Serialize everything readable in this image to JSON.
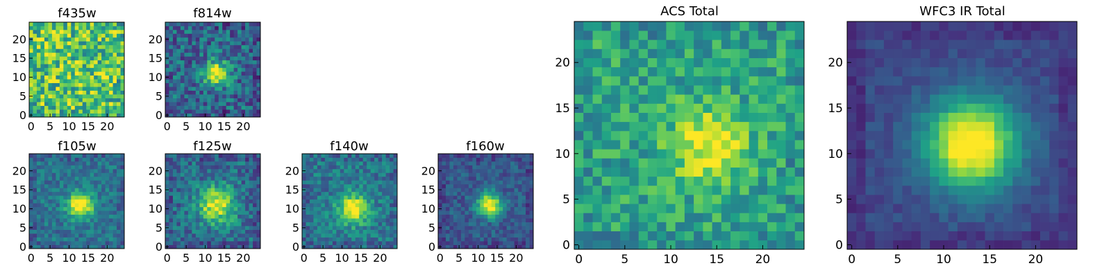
{
  "figure": {
    "colormap": "viridis",
    "colors": {
      "cmap_stops": [
        "#440154",
        "#46327e",
        "#365c8d",
        "#277f8e",
        "#1fa187",
        "#4ac16d",
        "#a0da39",
        "#fde725"
      ],
      "frame": "#000000",
      "background": "#ffffff"
    }
  },
  "chart_data": [
    {
      "id": "f435w",
      "type": "heatmap",
      "title": "f435w",
      "grid_size": 25,
      "xlim": [
        0,
        24
      ],
      "ylim": [
        0,
        24
      ],
      "xticks": [
        0,
        5,
        10,
        15,
        20
      ],
      "yticks": [
        0,
        5,
        10,
        15,
        20
      ],
      "xtick_labels": [
        "0",
        "5",
        "10",
        "15",
        "20"
      ],
      "ytick_labels": [
        "0",
        "5",
        "10",
        "15",
        "20"
      ],
      "peak": [
        13,
        11
      ],
      "peak_strength": 0.02,
      "psf_sigma": 3.0,
      "base_level": 0.72,
      "noise_level": 0.3,
      "seed": 11
    },
    {
      "id": "f814w",
      "type": "heatmap",
      "title": "f814w",
      "grid_size": 25,
      "xlim": [
        0,
        24
      ],
      "ylim": [
        0,
        24
      ],
      "xticks": [
        0,
        5,
        10,
        15,
        20
      ],
      "yticks": [
        0,
        5,
        10,
        15,
        20
      ],
      "xtick_labels": [
        "0",
        "5",
        "10",
        "15",
        "20"
      ],
      "ytick_labels": [
        "0",
        "5",
        "10",
        "15",
        "20"
      ],
      "peak": [
        13,
        11
      ],
      "peak_strength": 0.72,
      "psf_sigma": 2.2,
      "base_level": 0.34,
      "noise_level": 0.22,
      "seed": 27
    },
    {
      "id": "f105w",
      "type": "heatmap",
      "title": "f105w",
      "grid_size": 25,
      "xlim": [
        0,
        24
      ],
      "ylim": [
        0,
        24
      ],
      "xticks": [
        0,
        5,
        10,
        15,
        20
      ],
      "yticks": [
        0,
        5,
        10,
        15,
        20
      ],
      "xtick_labels": [
        "0",
        "5",
        "10",
        "15",
        "20"
      ],
      "ytick_labels": [
        "0",
        "5",
        "10",
        "15",
        "20"
      ],
      "peak": [
        13,
        11
      ],
      "peak_strength": 0.72,
      "psf_sigma": 2.4,
      "base_level": 0.38,
      "noise_level": 0.14,
      "seed": 41
    },
    {
      "id": "f125w",
      "type": "heatmap",
      "title": "f125w",
      "grid_size": 25,
      "xlim": [
        0,
        24
      ],
      "ylim": [
        0,
        24
      ],
      "xticks": [
        0,
        5,
        10,
        15,
        20
      ],
      "yticks": [
        0,
        5,
        10,
        15,
        20
      ],
      "xtick_labels": [
        "0",
        "5",
        "10",
        "15",
        "20"
      ],
      "ytick_labels": [
        "0",
        "5",
        "10",
        "15",
        "20"
      ],
      "peak": [
        13,
        11
      ],
      "peak_strength": 0.62,
      "psf_sigma": 3.4,
      "base_level": 0.35,
      "noise_level": 0.18,
      "seed": 53
    },
    {
      "id": "f140w",
      "type": "heatmap",
      "title": "f140w",
      "grid_size": 25,
      "xlim": [
        0,
        24
      ],
      "ylim": [
        0,
        24
      ],
      "xticks": [
        0,
        5,
        10,
        15,
        20
      ],
      "yticks": [
        0,
        5,
        10,
        15,
        20
      ],
      "xtick_labels": [
        "0",
        "5",
        "10",
        "15",
        "20"
      ],
      "ytick_labels": [
        "0",
        "5",
        "10",
        "15",
        "20"
      ],
      "peak": [
        13,
        10
      ],
      "peak_strength": 0.64,
      "psf_sigma": 2.8,
      "base_level": 0.4,
      "noise_level": 0.16,
      "seed": 67
    },
    {
      "id": "f160w",
      "type": "heatmap",
      "title": "f160w",
      "grid_size": 25,
      "xlim": [
        0,
        24
      ],
      "ylim": [
        0,
        24
      ],
      "xticks": [
        0,
        5,
        10,
        15,
        20
      ],
      "yticks": [
        0,
        5,
        10,
        15,
        20
      ],
      "xtick_labels": [
        "0",
        "5",
        "10",
        "15",
        "20"
      ],
      "ytick_labels": [
        "0",
        "5",
        "10",
        "15",
        "20"
      ],
      "peak": [
        13,
        11
      ],
      "peak_strength": 0.75,
      "psf_sigma": 2.3,
      "base_level": 0.28,
      "noise_level": 0.12,
      "seed": 79
    },
    {
      "id": "acs-total",
      "type": "heatmap",
      "title": "ACS Total",
      "grid_size": 25,
      "xlim": [
        0,
        24
      ],
      "ylim": [
        0,
        24
      ],
      "xticks": [
        0,
        5,
        10,
        15,
        20
      ],
      "yticks": [
        0,
        5,
        10,
        15,
        20
      ],
      "xtick_labels": [
        "0",
        "5",
        "10",
        "15",
        "20"
      ],
      "ytick_labels": [
        "0",
        "5",
        "10",
        "15",
        "20"
      ],
      "peak": [
        14,
        11
      ],
      "peak_strength": 0.42,
      "psf_sigma": 2.8,
      "base_level": 0.58,
      "noise_level": 0.18,
      "seed": 97
    },
    {
      "id": "wfc3-ir-total",
      "type": "heatmap",
      "title": "WFC3 IR Total",
      "grid_size": 25,
      "xlim": [
        0,
        24
      ],
      "ylim": [
        0,
        24
      ],
      "xticks": [
        0,
        5,
        10,
        15,
        20
      ],
      "yticks": [
        0,
        5,
        10,
        15,
        20
      ],
      "xtick_labels": [
        "0",
        "5",
        "10",
        "15",
        "20"
      ],
      "ytick_labels": [
        "0",
        "5",
        "10",
        "15",
        "20"
      ],
      "peak": [
        13,
        11
      ],
      "peak_strength": 0.88,
      "psf_sigma": 3.5,
      "base_level": 0.22,
      "noise_level": 0.06,
      "seed": 113
    }
  ]
}
